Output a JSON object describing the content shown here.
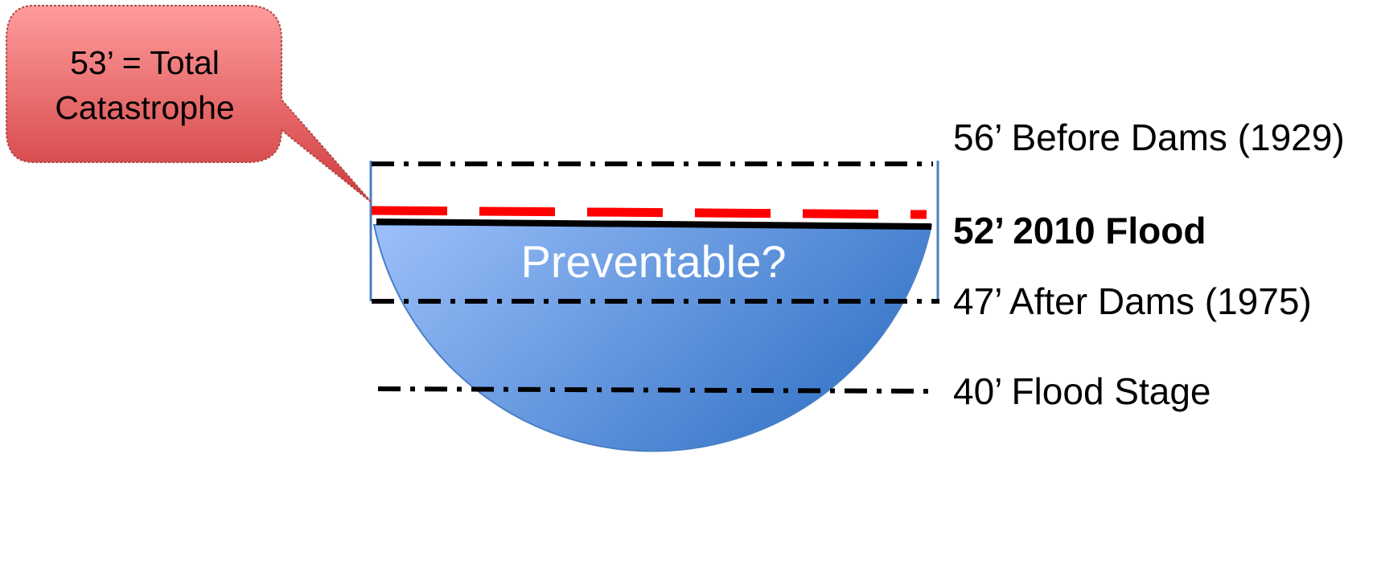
{
  "callout": {
    "text": "53’ = Total Catastrophe",
    "fill": "#e0585a"
  },
  "basin": {
    "label": "Preventable?",
    "fill_light": "#9cc0fa",
    "fill_dark": "#3a78c9"
  },
  "levels": [
    {
      "key": "56",
      "label": "56’ Before Dams (1929)",
      "bold": false,
      "line_style": "dash-dot"
    },
    {
      "key": "53",
      "label": "",
      "bold": false,
      "line_style": "red-dash",
      "color": "#ff0000"
    },
    {
      "key": "52",
      "label": "52’ 2010 Flood",
      "bold": true,
      "line_style": "solid"
    },
    {
      "key": "47",
      "label": "47’ After Dams (1975)",
      "bold": false,
      "line_style": "dash-dot"
    },
    {
      "key": "40",
      "label": "40’ Flood Stage",
      "bold": false,
      "line_style": "dash-dot"
    }
  ]
}
